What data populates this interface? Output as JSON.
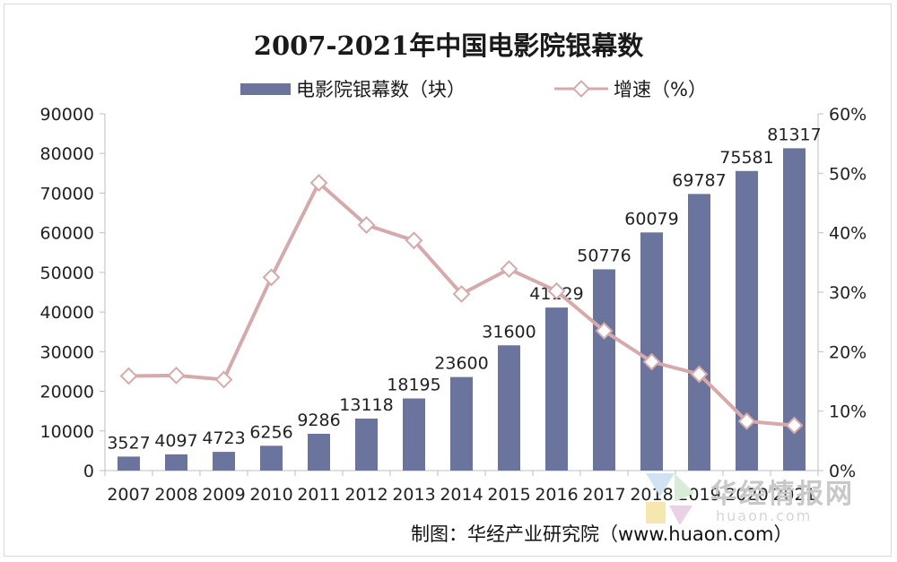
{
  "title": "2007-2021年中国电影院银幕数",
  "credit": "制图：华经产业研究院（www.huaon.com）",
  "watermark": {
    "cn": "华经情报网",
    "en": "huaon.com"
  },
  "colors": {
    "bar": "#6a749c",
    "line": "#d6aaaa",
    "marker_fill": "#ffffff"
  },
  "chart_data": {
    "type": "bar",
    "categories": [
      "2007",
      "2008",
      "2009",
      "2010",
      "2011",
      "2012",
      "2013",
      "2014",
      "2015",
      "2016",
      "2017",
      "2018",
      "2019",
      "2020",
      "2021"
    ],
    "series": [
      {
        "name": "电影院银幕数（块）",
        "type": "bar",
        "axis": "left",
        "values": [
          3527,
          4097,
          4723,
          6256,
          9286,
          13118,
          18195,
          23600,
          31600,
          41129,
          50776,
          60079,
          69787,
          75581,
          81317
        ]
      },
      {
        "name": "增速（%）",
        "type": "line",
        "axis": "right",
        "values": [
          15.9,
          16.0,
          15.3,
          32.5,
          48.4,
          41.3,
          38.7,
          29.7,
          33.9,
          30.2,
          23.5,
          18.3,
          16.2,
          8.3,
          7.6
        ]
      }
    ],
    "y_left": {
      "min": 0,
      "max": 90000,
      "ticks": [
        "0",
        "10000",
        "20000",
        "30000",
        "40000",
        "50000",
        "60000",
        "70000",
        "80000",
        "90000"
      ]
    },
    "y_right": {
      "min": 0,
      "max": 60,
      "ticks": [
        "0%",
        "10%",
        "20%",
        "30%",
        "40%",
        "50%",
        "60%"
      ]
    },
    "grid": false,
    "legend_position": "top"
  }
}
